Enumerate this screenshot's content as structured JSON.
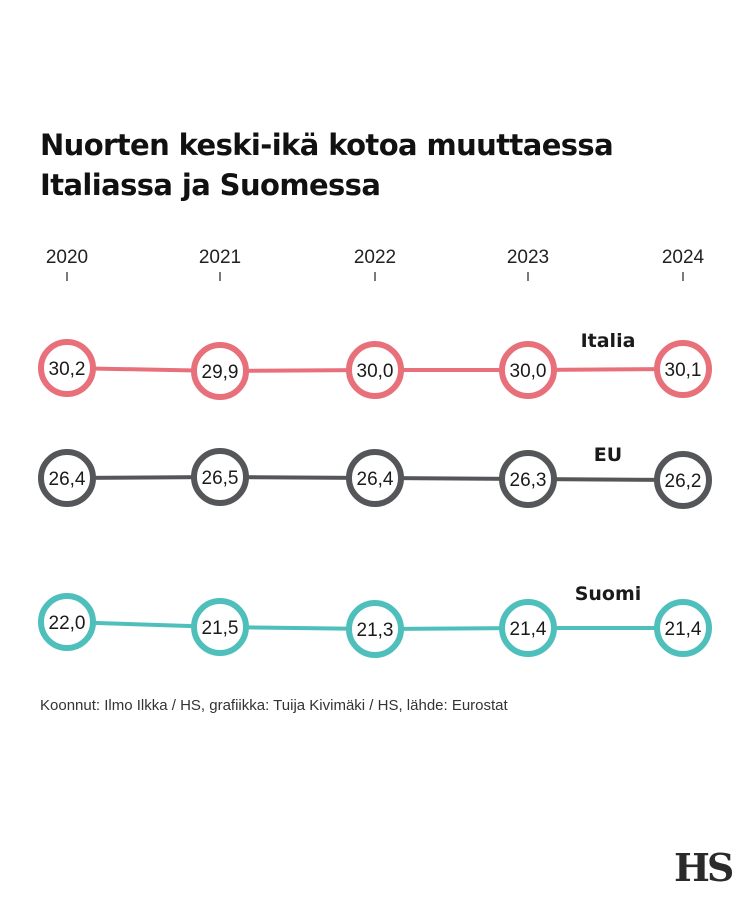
{
  "title_lines": [
    "Nuorten keski-ikä kotoa muuttaessa",
    "Italiassa ja Suomessa"
  ],
  "source": "Koonnut: Ilmo Ilkka / HS, grafiikka: Tuija Kivimäki / HS, lähde: Eurostat",
  "logo": "HS",
  "chart_data": {
    "type": "line",
    "categories": [
      "2020",
      "2021",
      "2022",
      "2023",
      "2024"
    ],
    "series": [
      {
        "name": "Italia",
        "values": [
          30.2,
          29.9,
          30.0,
          30.0,
          30.1
        ],
        "labels": [
          "30,2",
          "29,9",
          "30,0",
          "30,0",
          "30,1"
        ],
        "color": "#e8707a"
      },
      {
        "name": "EU",
        "values": [
          26.4,
          26.5,
          26.4,
          26.3,
          26.2
        ],
        "labels": [
          "26,4",
          "26,5",
          "26,4",
          "26,3",
          "26,2"
        ],
        "color": "#555659"
      },
      {
        "name": "Suomi",
        "values": [
          22.0,
          21.5,
          21.3,
          21.4,
          21.4
        ],
        "labels": [
          "22,0",
          "21,5",
          "21,3",
          "21,4",
          "21,4"
        ],
        "color": "#4fbfbc"
      }
    ]
  }
}
